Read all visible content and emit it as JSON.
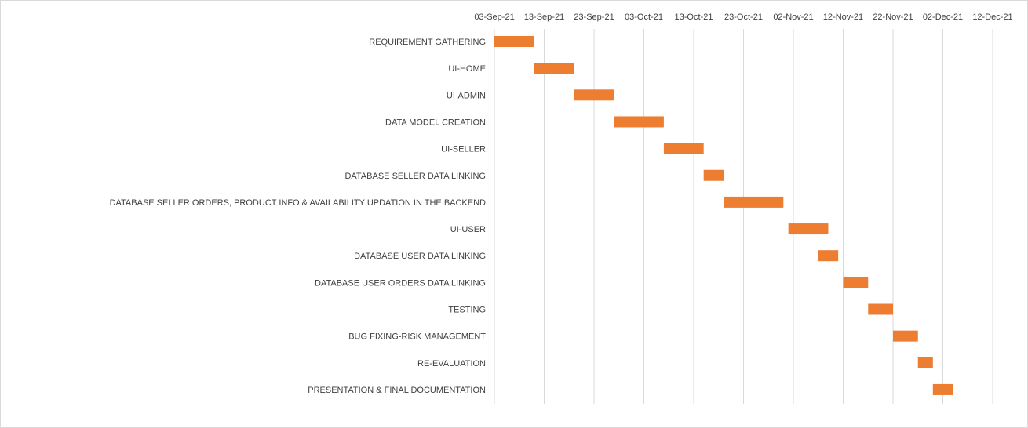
{
  "chart_data": {
    "type": "bar",
    "subtype": "gantt",
    "title": "",
    "xlabel": "",
    "ylabel": "",
    "xlim": [
      "2021-09-03",
      "2021-12-22"
    ],
    "x_ticks": [
      "03-Sep-21",
      "13-Sep-21",
      "23-Sep-21",
      "03-Oct-21",
      "13-Oct-21",
      "23-Oct-21",
      "02-Nov-21",
      "12-Nov-21",
      "22-Nov-21",
      "02-Dec-21",
      "12-Dec-21"
    ],
    "grid": true,
    "bar_color": "#ED7D31",
    "tasks": [
      {
        "label": "REQUIREMENT GATHERING",
        "start": "2021-09-03",
        "end": "2021-09-11"
      },
      {
        "label": "UI-HOME",
        "start": "2021-09-11",
        "end": "2021-09-19"
      },
      {
        "label": "UI-ADMIN",
        "start": "2021-09-19",
        "end": "2021-09-27"
      },
      {
        "label": "DATA MODEL CREATION",
        "start": "2021-09-27",
        "end": "2021-10-07"
      },
      {
        "label": "UI-SELLER",
        "start": "2021-10-07",
        "end": "2021-10-15"
      },
      {
        "label": "DATABASE SELLER DATA LINKING",
        "start": "2021-10-15",
        "end": "2021-10-19"
      },
      {
        "label": "DATABASE SELLER ORDERS, PRODUCT INFO & AVAILABILITY UPDATION IN THE BACKEND",
        "start": "2021-10-19",
        "end": "2021-10-31"
      },
      {
        "label": "UI-USER",
        "start": "2021-11-01",
        "end": "2021-11-09"
      },
      {
        "label": "DATABASE USER DATA LINKING",
        "start": "2021-11-07",
        "end": "2021-11-11"
      },
      {
        "label": "DATABASE USER ORDERS DATA LINKING",
        "start": "2021-11-12",
        "end": "2021-11-17"
      },
      {
        "label": "TESTING",
        "start": "2021-11-17",
        "end": "2021-11-22"
      },
      {
        "label": "BUG FIXING-RISK MANAGEMENT",
        "start": "2021-11-22",
        "end": "2021-11-27"
      },
      {
        "label": "RE-EVALUATION",
        "start": "2021-11-27",
        "end": "2021-11-30"
      },
      {
        "label": "PRESENTATION & FINAL DOCUMENTATION",
        "start": "2021-11-30",
        "end": "2021-12-04"
      }
    ]
  }
}
